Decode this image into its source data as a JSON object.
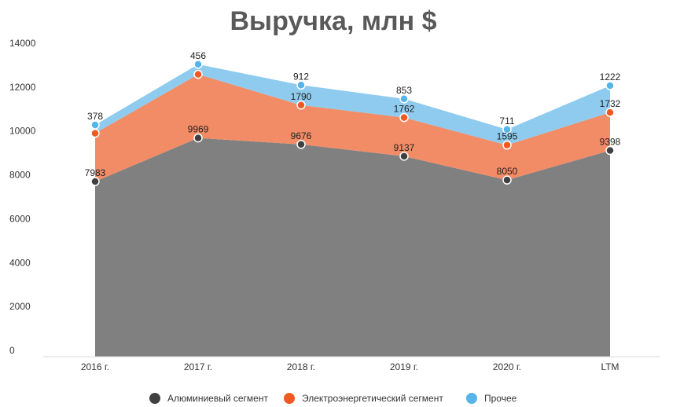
{
  "chart_data": {
    "type": "area",
    "stacked": true,
    "title": "Выручка, млн $",
    "xlabel": "",
    "ylabel": "",
    "categories": [
      "2016 г.",
      "2017 г.",
      "2018 г.",
      "2019 г.",
      "2020 г.",
      "LTM"
    ],
    "ylim": [
      0,
      14000
    ],
    "yticks": [
      0,
      2000,
      4000,
      6000,
      8000,
      10000,
      12000,
      14000
    ],
    "grid": false,
    "legend_position": "bottom",
    "series": [
      {
        "name": "Алюминиевый сегмент",
        "color": "#808080",
        "marker_color": "#404040",
        "values": [
          7983,
          9969,
          9676,
          9137,
          8050,
          9398
        ]
      },
      {
        "name": "Электроэнергетический сегмент",
        "color": "#f28c67",
        "marker_color": "#f05a22",
        "values": [
          2200,
          2900,
          1790,
          1762,
          1595,
          1732
        ]
      },
      {
        "name": "Прочее",
        "color": "#8ecbee",
        "marker_color": "#56b4e9",
        "values": [
          378,
          456,
          912,
          853,
          711,
          1222
        ]
      }
    ],
    "data_labels": [
      [
        "7983",
        "9969",
        "9676",
        "9137",
        "8050",
        "9398"
      ],
      [
        "",
        "",
        "1790",
        "1762",
        "1595",
        "1732"
      ],
      [
        "378",
        "456",
        "912",
        "853",
        "711",
        "1222"
      ]
    ]
  }
}
